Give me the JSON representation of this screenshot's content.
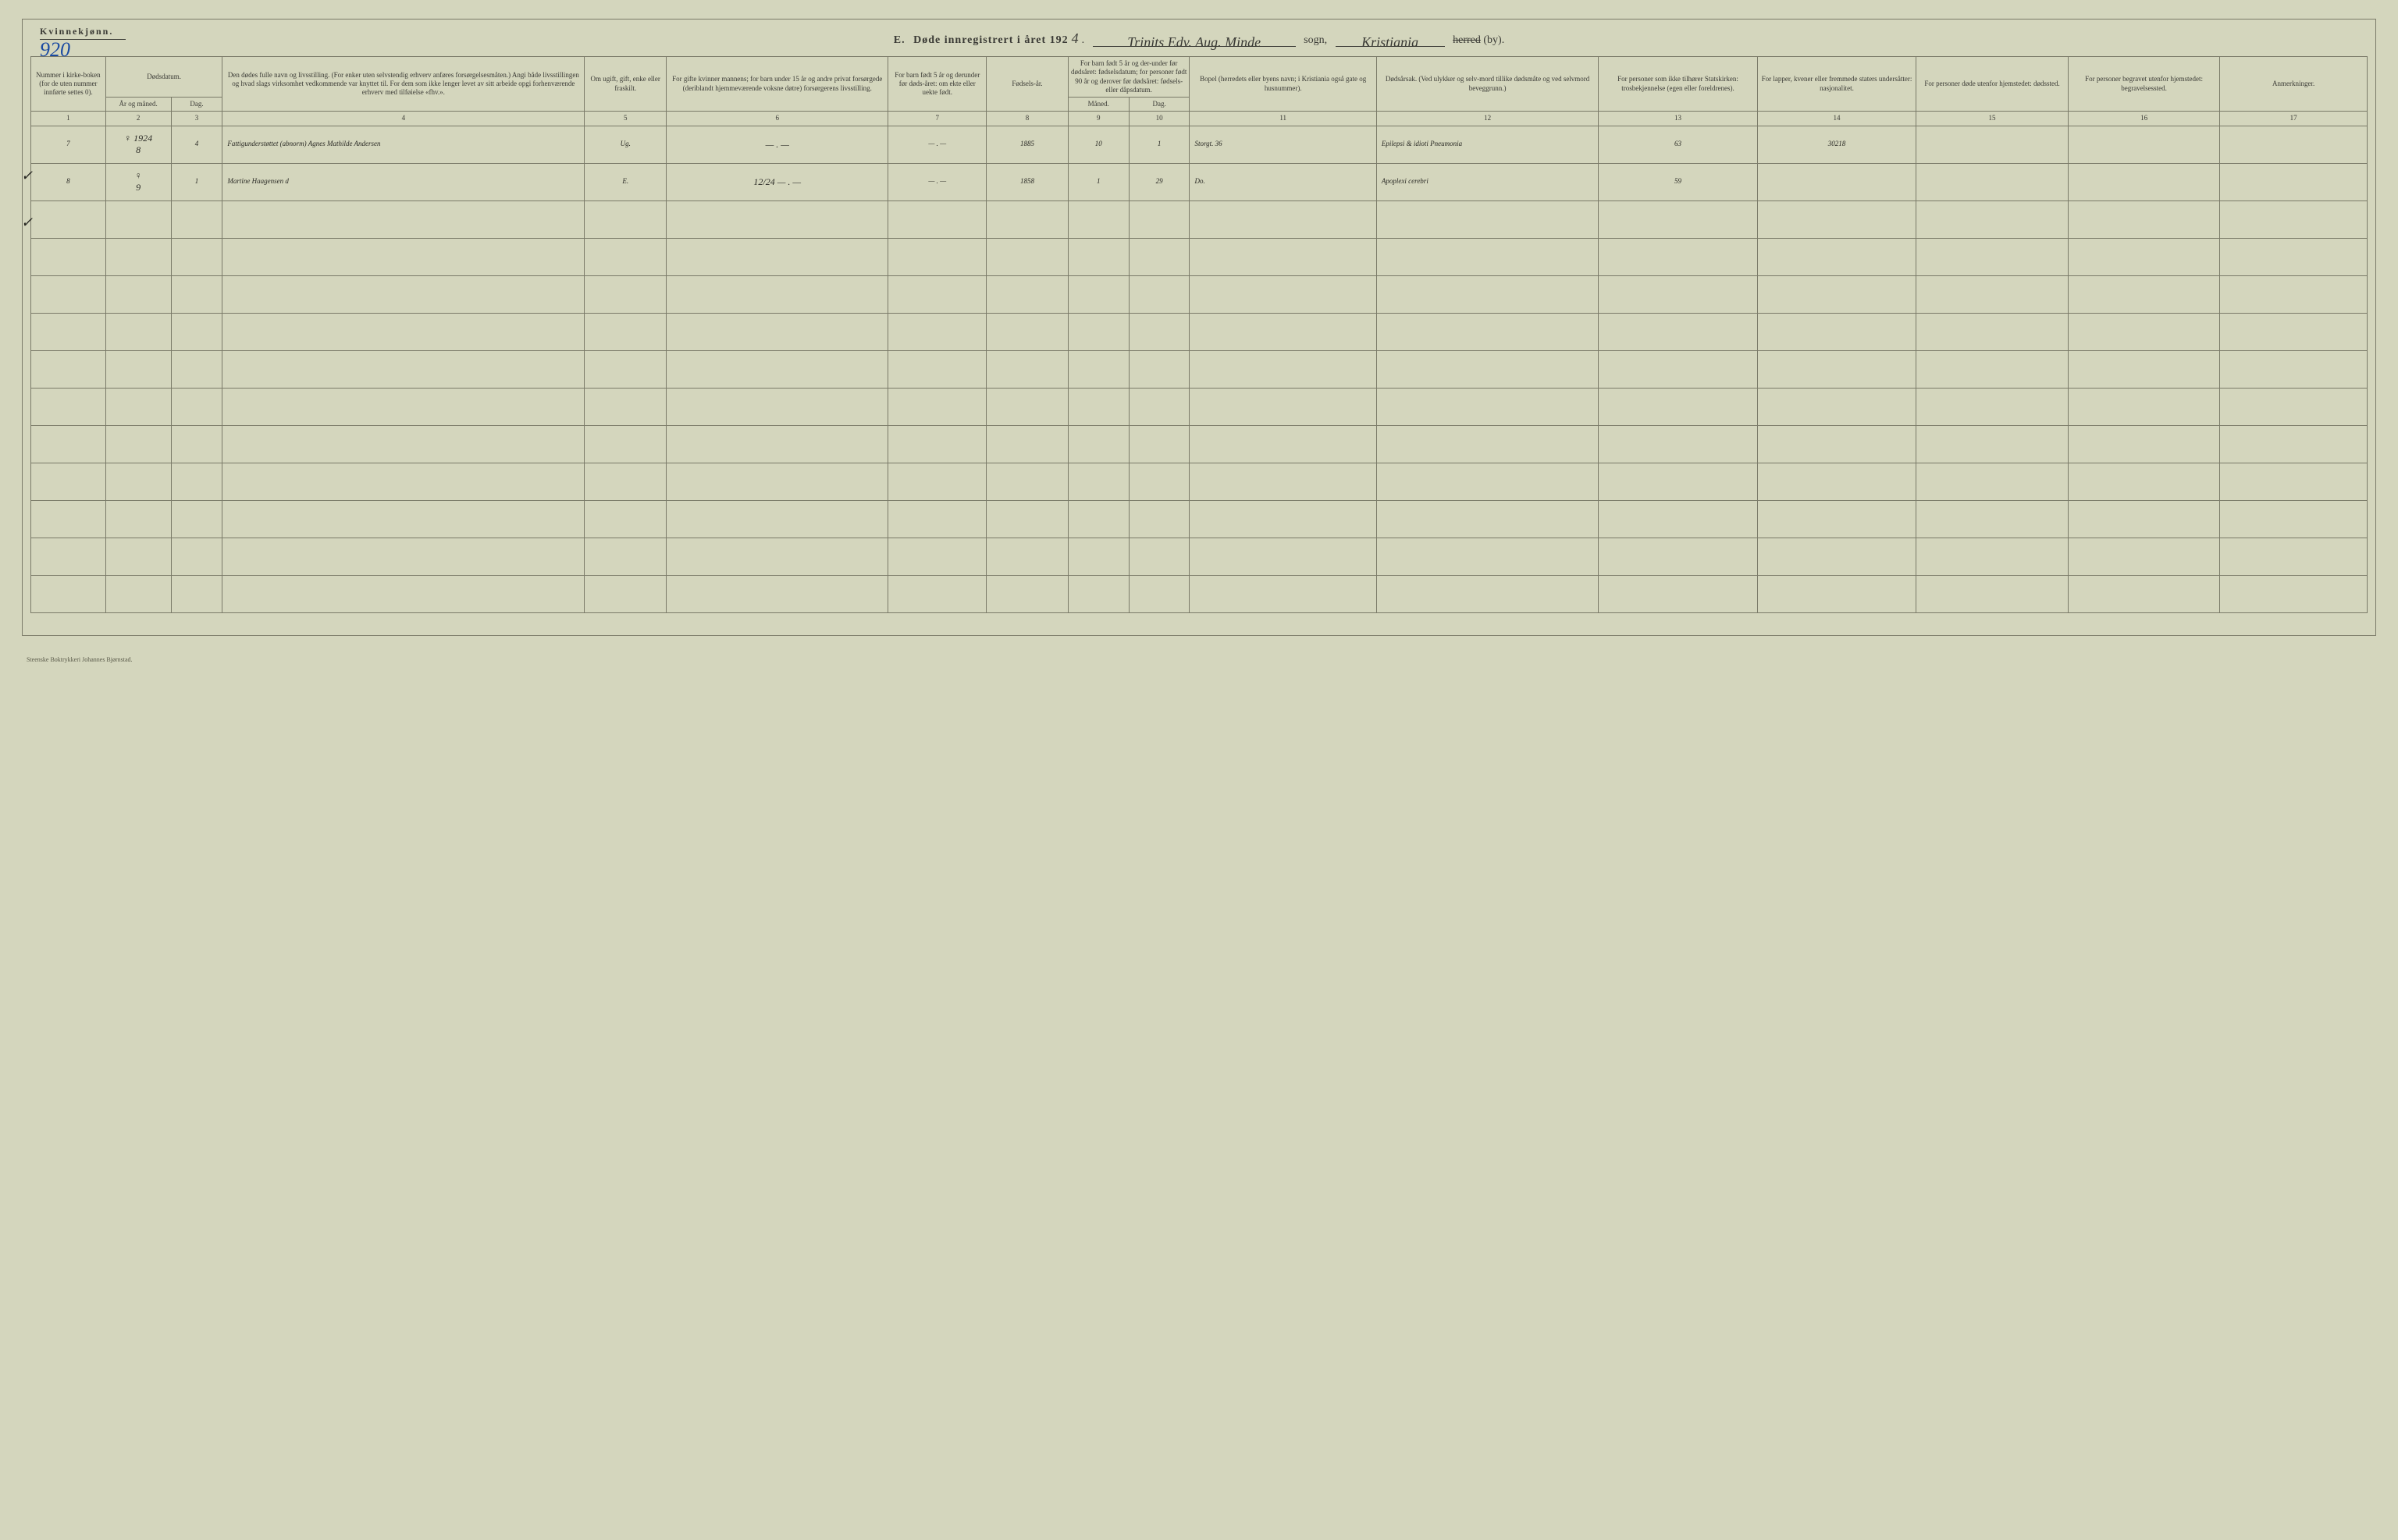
{
  "header": {
    "gender_label": "Kvinnekjønn.",
    "page_number": "920",
    "title_prefix": "E.",
    "title_main": "Døde innregistrert i året 192",
    "year_digit": "4",
    "parish_script": "Trinits Edv. Aug. Minde",
    "sogn_label": "sogn,",
    "city_script": "Kristiania",
    "herred_struck": "herred",
    "by_label": "(by)."
  },
  "columns": {
    "c1": "Nummer i kirke-boken (for de uten nummer innførte settes 0).",
    "c2": "Dødsdatum.",
    "c2a": "År og måned.",
    "c2b": "Dag.",
    "c4": "Den dødes fulle navn og livsstilling. (For enker uten selvstendig erhverv anføres forsørgelsesmåten.) Angi både livsstillingen og hvad slags virksomhet vedkommende var knyttet til. For dem som ikke lenger levet av sitt arbeide opgi forhenværende erhverv med tilføielse «fhv.».",
    "c5": "Om ugift, gift, enke eller fraskilt.",
    "c6": "For gifte kvinner mannens; for barn under 15 år og andre privat forsørgede (deriblandt hjemmeværende voksne døtre) forsørgerens livsstilling.",
    "c7": "For barn født 5 år og derunder før døds-året: om ekte eller uekte født.",
    "c8": "Fødsels-år.",
    "c9_10": "For barn født 5 år og der-under før dødsåret: fødselsdatum; for personer født 90 år og derover før dødsåret: fødsels- eller dåpsdatum.",
    "c9": "Måned.",
    "c10": "Dag.",
    "c11": "Bopel (herredets eller byens navn; i Kristiania også gate og husnummer).",
    "c12": "Dødsårsak. (Ved ulykker og selv-mord tillike dødsmåte og ved selvmord beveggrunn.)",
    "c13": "For personer som ikke tilhører Statskirken: trosbekjennelse (egen eller foreldrenes).",
    "c14": "For lapper, kvener eller fremmede staters undersåtter: nasjonalitet.",
    "c15": "For personer døde utenfor hjemstedet: dødssted.",
    "c16": "For personer begravet utenfor hjemstedet: begravelsessted.",
    "c17": "Anmerkninger."
  },
  "colnums": [
    "1",
    "2",
    "3",
    "4",
    "5",
    "6",
    "7",
    "8",
    "9",
    "10",
    "11",
    "12",
    "13",
    "14",
    "15",
    "16",
    "17"
  ],
  "rows": [
    {
      "num": "7",
      "year_month": "8",
      "year_pre": "♀ 1924",
      "day": "4",
      "name": "Fattigunderstøttet (abnorm)  Agnes Mathilde Andersen",
      "status": "Ug.",
      "spouse": "— . —",
      "ekte": "— . —",
      "birth_year": "1885",
      "b_month": "10",
      "b_day": "1",
      "bopel": "Storgt. 36",
      "cause": "Epilepsi & idioti Pneumonia",
      "col13": "63",
      "col14": "30218",
      "col15": "",
      "col16": "",
      "col17": ""
    },
    {
      "num": "8",
      "year_month": "9",
      "year_pre": "♀",
      "day": "1",
      "name": "Martine Haagensen    d",
      "status": "E.",
      "spouse": "12/24  — . —",
      "ekte": "— . —",
      "birth_year": "1858",
      "b_month": "1",
      "b_day": "29",
      "bopel": "Do.",
      "cause": "Apoplexi cerebri",
      "col13": "59",
      "col14": "",
      "col15": "",
      "col16": "",
      "col17": ""
    }
  ],
  "footer": "Steenske Boktrykkeri Johannes Bjørnstad.",
  "colors": {
    "paper": "#d4d6bd",
    "line": "#7a7a68",
    "ink": "#3a3a35",
    "blue": "#1a4aa2"
  },
  "col_widths_pct": [
    3.2,
    2.8,
    2.2,
    15.5,
    3.5,
    9.5,
    4.2,
    3.5,
    2.6,
    2.6,
    8.0,
    9.5,
    6.8,
    6.8,
    6.5,
    6.5,
    6.3
  ],
  "empty_row_count": 11
}
